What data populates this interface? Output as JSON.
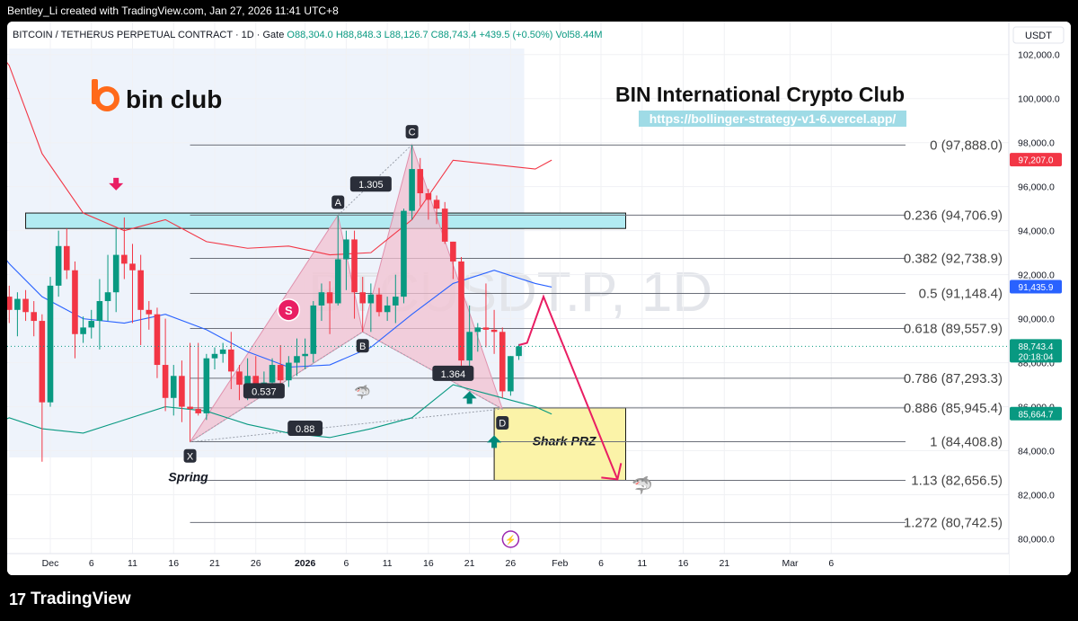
{
  "header": {
    "attribution": "Bentley_Li created with TradingView.com, Jan 27, 2026 11:41 UTC+8"
  },
  "footer": {
    "brand": "TradingView",
    "logo_mark": "17"
  },
  "legend": {
    "symbol": "BITCOIN / TETHERUS PERPETUAL CONTRACT · 1D · Gate",
    "open": "O88,304.0",
    "high": "H88,848.3",
    "low": "L88,126.7",
    "close": "C88,743.4",
    "change": "+439.5 (+0.50%)",
    "vol": "Vol58.44",
    "vol_unit": "M"
  },
  "currency": "USDT",
  "watermark": "BTCUSDT.P, 1D",
  "brand": {
    "name": "bin club",
    "club_title": "BIN International Crypto Club",
    "url": "https://bollinger-strategy-v1-6.vercel.app/"
  },
  "colors": {
    "up": "#089981",
    "down": "#f23645",
    "bb_upper": "#f23645",
    "bb_lower": "#089981",
    "bb_basis": "#2962ff",
    "harmonic_fill": "#f2c0d0",
    "resistance_zone": "#b2ebf2",
    "prz_fill": "#fbf3a8",
    "arrow": "#e91e63"
  },
  "chart_data": {
    "type": "candlestick",
    "ylim": [
      79000,
      103500
    ],
    "y_ticks": [
      "80,000.0",
      "82,000.0",
      "84,000.0",
      "86,000.0",
      "88,000.0",
      "90,000.0",
      "92,000.0",
      "94,000.0",
      "96,000.0",
      "98,000.0",
      "100,000.0",
      "102,000.0"
    ],
    "x_ticks": [
      {
        "label": "Dec",
        "date": "2025-12-01",
        "bold": false
      },
      {
        "label": "6",
        "date": "2025-12-06",
        "bold": false
      },
      {
        "label": "11",
        "date": "2025-12-11",
        "bold": false
      },
      {
        "label": "16",
        "date": "2025-12-16",
        "bold": false
      },
      {
        "label": "21",
        "date": "2025-12-21",
        "bold": false
      },
      {
        "label": "26",
        "date": "2025-12-26",
        "bold": false
      },
      {
        "label": "2026",
        "date": "2026-01-01",
        "bold": true
      },
      {
        "label": "6",
        "date": "2026-01-06",
        "bold": false
      },
      {
        "label": "11",
        "date": "2026-01-11",
        "bold": false
      },
      {
        "label": "16",
        "date": "2026-01-16",
        "bold": false
      },
      {
        "label": "21",
        "date": "2026-01-21",
        "bold": false
      },
      {
        "label": "26",
        "date": "2026-01-26",
        "bold": false
      },
      {
        "label": "Feb",
        "date": "2026-02-01",
        "bold": false
      },
      {
        "label": "6",
        "date": "2026-02-06",
        "bold": false
      },
      {
        "label": "11",
        "date": "2026-02-11",
        "bold": false
      },
      {
        "label": "16",
        "date": "2026-02-16",
        "bold": false
      },
      {
        "label": "21",
        "date": "2026-02-21",
        "bold": false
      },
      {
        "label": "Mar",
        "date": "2026-03-01",
        "bold": false
      },
      {
        "label": "6",
        "date": "2026-03-06",
        "bold": false
      }
    ],
    "candles": [
      [
        "2025-11-26",
        91000,
        91500,
        89800,
        90400
      ],
      [
        "2025-11-27",
        90400,
        91200,
        89200,
        90900
      ],
      [
        "2025-11-28",
        90900,
        91300,
        89900,
        90300
      ],
      [
        "2025-11-29",
        90300,
        90800,
        89200,
        89900
      ],
      [
        "2025-11-30",
        89900,
        90200,
        83500,
        86200
      ],
      [
        "2025-12-01",
        86200,
        91900,
        86000,
        91500
      ],
      [
        "2025-12-02",
        91500,
        94000,
        91000,
        93300
      ],
      [
        "2025-12-03",
        93300,
        94100,
        91800,
        92200
      ],
      [
        "2025-12-04",
        92200,
        92600,
        88200,
        89300
      ],
      [
        "2025-12-05",
        89300,
        90100,
        88900,
        89600
      ],
      [
        "2025-12-06",
        89600,
        90400,
        89100,
        89900
      ],
      [
        "2025-12-07",
        89900,
        91800,
        88600,
        90800
      ],
      [
        "2025-12-08",
        90800,
        92900,
        89900,
        91200
      ],
      [
        "2025-12-09",
        91200,
        94100,
        90300,
        92900
      ],
      [
        "2025-12-10",
        92900,
        94600,
        91800,
        92500
      ],
      [
        "2025-12-11",
        92500,
        93400,
        89800,
        92200
      ],
      [
        "2025-12-12",
        92200,
        92900,
        88800,
        90400
      ],
      [
        "2025-12-13",
        90400,
        90800,
        89500,
        90200
      ],
      [
        "2025-12-14",
        90200,
        90500,
        87300,
        87900
      ],
      [
        "2025-12-15",
        87900,
        90000,
        85800,
        86400
      ],
      [
        "2025-12-16",
        86400,
        87900,
        85600,
        87400
      ],
      [
        "2025-12-17",
        87400,
        88100,
        85300,
        86000
      ],
      [
        "2025-12-18",
        86000,
        88900,
        84400,
        85900
      ],
      [
        "2025-12-19",
        85900,
        88900,
        85600,
        85700
      ],
      [
        "2025-12-20",
        85700,
        88400,
        85400,
        88200
      ],
      [
        "2025-12-21",
        88200,
        88700,
        87700,
        88400
      ],
      [
        "2025-12-22",
        88400,
        88900,
        88000,
        88600
      ],
      [
        "2025-12-23",
        88600,
        89400,
        86800,
        87600
      ],
      [
        "2025-12-24",
        87600,
        87900,
        86300,
        87000
      ],
      [
        "2025-12-25",
        87000,
        88200,
        86300,
        87400
      ],
      [
        "2025-12-26",
        87400,
        88300,
        86900,
        87000
      ],
      [
        "2025-12-27",
        87000,
        87600,
        86700,
        87100
      ],
      [
        "2025-12-28",
        87100,
        88200,
        86800,
        87900
      ],
      [
        "2025-12-29",
        87900,
        88800,
        86700,
        87200
      ],
      [
        "2025-12-30",
        87200,
        88300,
        86900,
        88000
      ],
      [
        "2025-12-31",
        88000,
        89100,
        87400,
        88300
      ],
      [
        "2026-01-01",
        88300,
        89100,
        87700,
        88400
      ],
      [
        "2026-01-02",
        88400,
        90800,
        88000,
        90600
      ],
      [
        "2026-01-03",
        90600,
        91600,
        89900,
        91200
      ],
      [
        "2026-01-04",
        91200,
        91700,
        89300,
        90700
      ],
      [
        "2026-01-05",
        90700,
        94700,
        90600,
        92700
      ],
      [
        "2026-01-06",
        92700,
        94000,
        91300,
        93600
      ],
      [
        "2026-01-07",
        93600,
        94000,
        90000,
        91200
      ],
      [
        "2026-01-08",
        91200,
        91900,
        89400,
        90700
      ],
      [
        "2026-01-09",
        90700,
        91600,
        89400,
        91100
      ],
      [
        "2026-01-10",
        91100,
        91400,
        90100,
        90300
      ],
      [
        "2026-01-11",
        90300,
        91000,
        89900,
        90600
      ],
      [
        "2026-01-12",
        90600,
        92000,
        89800,
        91000
      ],
      [
        "2026-01-13",
        91000,
        95000,
        90700,
        94900
      ],
      [
        "2026-01-14",
        94900,
        97900,
        94500,
        96800
      ],
      [
        "2026-01-15",
        96800,
        97300,
        95100,
        95700
      ],
      [
        "2026-01-16",
        95700,
        95900,
        94500,
        95400
      ],
      [
        "2026-01-17",
        95400,
        95600,
        94300,
        95000
      ],
      [
        "2026-01-18",
        95000,
        95300,
        93400,
        93500
      ],
      [
        "2026-01-19",
        93500,
        93500,
        91800,
        92600
      ],
      [
        "2026-01-20",
        92600,
        92800,
        87800,
        88100
      ],
      [
        "2026-01-21",
        88100,
        90600,
        87200,
        89400
      ],
      [
        "2026-01-22",
        89400,
        89800,
        88500,
        89600
      ],
      [
        "2026-01-23",
        89600,
        91600,
        88700,
        89500
      ],
      [
        "2026-01-24",
        89500,
        90400,
        88400,
        89400
      ],
      [
        "2026-01-25",
        89400,
        89600,
        86400,
        86700
      ],
      [
        "2026-01-26",
        86700,
        88300,
        86500,
        88300
      ],
      [
        "2026-01-27",
        88304,
        88848.3,
        88126.7,
        88743.4
      ]
    ],
    "bollinger": {
      "upper": [
        [
          -8,
          103500
        ],
        [
          -4,
          101500
        ],
        [
          0,
          97500
        ],
        [
          5,
          94800
        ],
        [
          10,
          94000
        ],
        [
          15,
          94500
        ],
        [
          20,
          93500
        ],
        [
          25,
          93200
        ],
        [
          30,
          93300
        ],
        [
          35,
          92900
        ],
        [
          40,
          93000
        ],
        [
          45,
          94500
        ],
        [
          50,
          97200
        ],
        [
          55,
          97000
        ],
        [
          60,
          96800
        ],
        [
          62,
          97207
        ]
      ],
      "basis": [
        [
          -8,
          94500
        ],
        [
          -4,
          92500
        ],
        [
          0,
          91000
        ],
        [
          5,
          90000
        ],
        [
          10,
          89800
        ],
        [
          15,
          90200
        ],
        [
          20,
          89500
        ],
        [
          25,
          88500
        ],
        [
          30,
          87800
        ],
        [
          35,
          87900
        ],
        [
          40,
          88700
        ],
        [
          45,
          90200
        ],
        [
          50,
          91600
        ],
        [
          55,
          92200
        ],
        [
          60,
          91600
        ],
        [
          62,
          91435.9
        ]
      ],
      "lower": [
        [
          -8,
          84800
        ],
        [
          -4,
          85500
        ],
        [
          0,
          85000
        ],
        [
          5,
          84800
        ],
        [
          10,
          85400
        ],
        [
          15,
          86000
        ],
        [
          20,
          85800
        ],
        [
          25,
          85200
        ],
        [
          30,
          84800
        ],
        [
          35,
          84600
        ],
        [
          40,
          85000
        ],
        [
          45,
          85500
        ],
        [
          50,
          87000
        ],
        [
          55,
          86500
        ],
        [
          60,
          86000
        ],
        [
          62,
          85664.7
        ]
      ]
    },
    "fib_levels": [
      {
        "label": "0 (97,888.0)",
        "value": 97888.0
      },
      {
        "label": "0.236 (94,706.9)",
        "value": 94706.9
      },
      {
        "label": "0.382 (92,738.9)",
        "value": 92738.9
      },
      {
        "label": "0.5 (91,148.4)",
        "value": 91148.4
      },
      {
        "label": "0.618 (89,557.9)",
        "value": 89557.9
      },
      {
        "label": "0.786 (87,293.3)",
        "value": 87293.3
      },
      {
        "label": "0.886 (85,945.4)",
        "value": 85945.4
      },
      {
        "label": "1 (84,408.8)",
        "value": 84408.8
      },
      {
        "label": "1.13 (82,656.5)",
        "value": 82656.5
      },
      {
        "label": "1.272 (80,742.5)",
        "value": 80742.5
      }
    ],
    "harmonic": {
      "points": [
        {
          "label": "X",
          "date": "2025-12-18",
          "price": 84400
        },
        {
          "label": "A",
          "date": "2026-01-05",
          "price": 94700
        },
        {
          "label": "B",
          "date": "2026-01-08",
          "price": 89400
        },
        {
          "label": "C",
          "date": "2026-01-14",
          "price": 97900
        },
        {
          "label": "D",
          "date": "2026-01-25",
          "price": 85900
        }
      ],
      "ratios": [
        {
          "label": "1.305",
          "date": "2026-01-09",
          "price": 96100
        },
        {
          "label": "0.537",
          "date": "2025-12-27",
          "price": 86700
        },
        {
          "label": "1.364",
          "date": "2026-01-19",
          "price": 87500
        },
        {
          "label": "0.88",
          "date": "2026-01-01",
          "price": 85000
        }
      ]
    },
    "resistance_zone": {
      "from_date": "2025-11-28",
      "to_date": "2026-02-09",
      "top": 94800,
      "bottom": 94100
    },
    "prz": {
      "from_date": "2026-01-24",
      "to_date": "2026-02-09",
      "top": 85945.4,
      "bottom": 82656.5,
      "label": "Shark PRZ"
    },
    "price_tags": [
      {
        "price": 97207.0,
        "label": "97,207.0",
        "color": "#f23645"
      },
      {
        "price": 91435.9,
        "label": "91,435.9",
        "color": "#2962ff"
      },
      {
        "price": 88743.4,
        "label": "88,743.4",
        "sub": "20:18:04",
        "color": "#089981"
      },
      {
        "price": 85664.7,
        "label": "85,664.7",
        "color": "#089981"
      }
    ],
    "projection": [
      [
        "2026-01-27",
        88800
      ],
      [
        "2026-01-28",
        88900
      ],
      [
        "2026-01-30",
        91000
      ],
      [
        "2026-02-08",
        82700
      ]
    ],
    "labels": {
      "spring": "Spring",
      "s_marker": "S"
    }
  }
}
